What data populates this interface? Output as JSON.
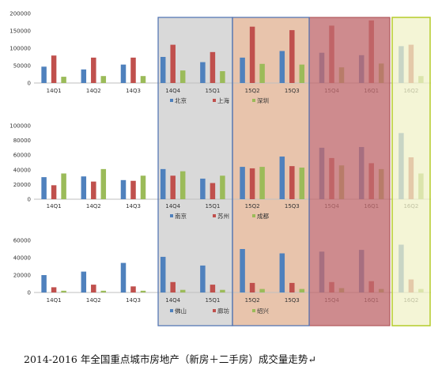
{
  "caption": "2014-2016 年全国重点城市房地产（新房＋二手房）成交量走势↵",
  "colors": {
    "series1": "#4f81bd",
    "series2": "#c0504d",
    "series3": "#9bbb59",
    "box_gray": "#d9d9d9",
    "box_peach": "#e8c4ac",
    "box_red": "#c06a6e",
    "box_yellow": "#f0f2c8",
    "box_border_blue": "#4a6fb0",
    "box_border_green": "#b5cc2a"
  },
  "chart_data": [
    {
      "type": "bar",
      "categories": [
        "14Q1",
        "14Q2",
        "14Q3",
        "14Q4",
        "15Q1",
        "15Q2",
        "15Q3",
        "15Q4",
        "16Q1",
        "16Q2"
      ],
      "series": [
        {
          "name": "北京",
          "values": [
            47000,
            39000,
            53000,
            75000,
            60000,
            73000,
            92000,
            87000,
            80000,
            106000
          ]
        },
        {
          "name": "上海",
          "values": [
            79000,
            73000,
            73000,
            110000,
            89000,
            162000,
            152000,
            165000,
            180000,
            110000
          ]
        },
        {
          "name": "深圳",
          "values": [
            18000,
            20000,
            20000,
            36000,
            34000,
            55000,
            53000,
            45000,
            56000,
            20000
          ]
        }
      ],
      "yticks": [
        "0",
        "50000",
        "100000",
        "150000",
        "200000"
      ],
      "ylim": [
        0,
        200000
      ],
      "legend_position": "bottom"
    },
    {
      "type": "bar",
      "categories": [
        "14Q1",
        "14Q2",
        "14Q3",
        "14Q4",
        "15Q1",
        "15Q2",
        "15Q3",
        "15Q4",
        "16Q1",
        "16Q2"
      ],
      "series": [
        {
          "name": "南京",
          "values": [
            30000,
            31000,
            26000,
            41000,
            28000,
            44000,
            58000,
            70000,
            71000,
            90000
          ]
        },
        {
          "name": "苏州",
          "values": [
            19000,
            24000,
            25000,
            32000,
            22000,
            42000,
            45000,
            56000,
            49000,
            57000
          ]
        },
        {
          "name": "成都",
          "values": [
            35000,
            41000,
            32000,
            38000,
            32000,
            44000,
            43000,
            46000,
            41000,
            35000
          ]
        }
      ],
      "yticks": [
        "0",
        "20000",
        "40000",
        "60000",
        "80000",
        "100000"
      ],
      "ylim": [
        0,
        100000
      ],
      "legend_position": "bottom"
    },
    {
      "type": "bar",
      "categories": [
        "14Q1",
        "14Q2",
        "14Q3",
        "14Q4",
        "15Q1",
        "15Q2",
        "15Q3",
        "15Q4",
        "16Q1",
        "16Q2"
      ],
      "series": [
        {
          "name": "佛山",
          "values": [
            20000,
            24000,
            34000,
            41000,
            31000,
            50000,
            45000,
            47000,
            49000,
            55000
          ]
        },
        {
          "name": "廊坊",
          "values": [
            6000,
            9000,
            7000,
            12000,
            9000,
            11000,
            11000,
            12000,
            13000,
            15000
          ]
        },
        {
          "name": "绍兴",
          "values": [
            2000,
            2000,
            2000,
            3000,
            3000,
            4000,
            4000,
            5000,
            4000,
            4000
          ]
        }
      ],
      "yticks": [
        "0",
        "20000",
        "40000",
        "60000"
      ],
      "ylim": [
        0,
        60000
      ],
      "legend_position": "bottom"
    }
  ]
}
